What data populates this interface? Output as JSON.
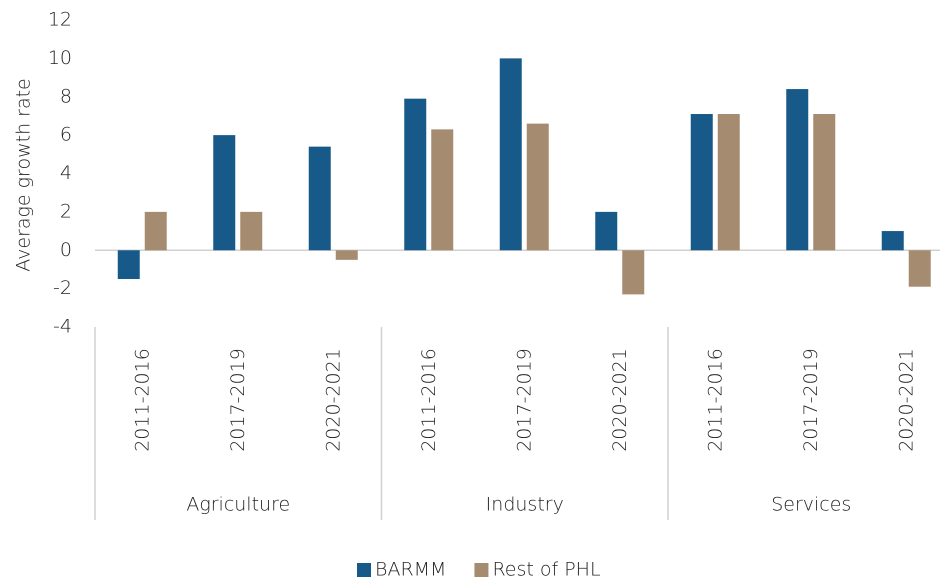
{
  "chart_data": {
    "type": "bar",
    "y_label": "Average growth rate",
    "groups": [
      {
        "name": "Agriculture",
        "categories": [
          "2011-2016",
          "2017-2019",
          "2020-2021"
        ]
      },
      {
        "name": "Industry",
        "categories": [
          "2011-2016",
          "2017-2019",
          "2020-2021"
        ]
      },
      {
        "name": "Services",
        "categories": [
          "2011-2016",
          "2017-2019",
          "2020-2021"
        ]
      }
    ],
    "series": [
      {
        "name": "BARMM",
        "color": "#175a89",
        "values": [
          -1.5,
          6,
          5.4,
          7.9,
          10,
          2,
          7.1,
          8.4,
          1
        ]
      },
      {
        "name": "Rest of PHL",
        "color": "#a58b70",
        "values": [
          2,
          2,
          -0.5,
          6.3,
          6.6,
          -2.3,
          7.1,
          7.1,
          -1.9
        ]
      }
    ],
    "ylim": [
      -4,
      12
    ],
    "yticks": [
      -4,
      -2,
      0,
      2,
      4,
      6,
      8,
      10,
      12
    ],
    "grid": false,
    "legend": "bottom"
  }
}
